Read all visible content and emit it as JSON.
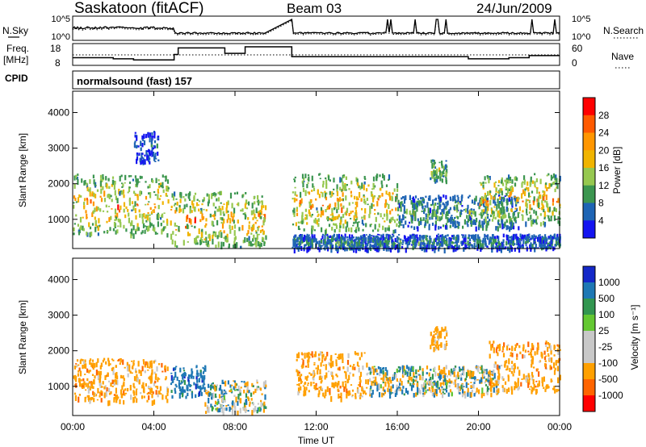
{
  "header": {
    "station": "Saskatoon (fitACF)",
    "beam": "Beam 03",
    "date": "24/Jun/2009"
  },
  "panels": {
    "nsky_label": "N.Sky",
    "nsearch_label": "N.Search",
    "freq_label_1": "Freq.",
    "freq_label_2": "[MHz]",
    "nave_label": "Nave",
    "cpid_label": "CPID",
    "cpid_value": "normalsound (fast) 157"
  },
  "axes": {
    "xlabel": "Time UT",
    "ylabel": "Slant Range [km]",
    "xticks": [
      "00:00",
      "04:00",
      "08:00",
      "12:00",
      "16:00",
      "20:00",
      "00:00"
    ],
    "yticks": [
      "1000",
      "2000",
      "3000",
      "4000"
    ],
    "noise_left_ticks": [
      "10^5",
      "10^0"
    ],
    "noise_right_ticks": [
      "10^5",
      "10^0"
    ],
    "freq_left_ticks": [
      "18",
      "8"
    ],
    "freq_right_ticks": [
      "60",
      "0"
    ]
  },
  "colorbars": {
    "power": {
      "label": "Power [dB]",
      "ticks": [
        "28",
        "24",
        "20",
        "16",
        "12",
        "8",
        "4"
      ],
      "colors": [
        "#ff0000",
        "#ff5a00",
        "#ff9600",
        "#f0b400",
        "#96c850",
        "#3c9650",
        "#1e64b4",
        "#1414f0"
      ]
    },
    "velocity": {
      "label": "Velocity [m s⁻¹]",
      "ticks": [
        "1000",
        "500",
        "100",
        "25",
        "-25",
        "-100",
        "-500",
        "-1000"
      ],
      "colors": [
        "#1428c8",
        "#1e78b4",
        "#329650",
        "#64c832",
        "#c8c8c8",
        "#c8c8c8",
        "#ffa000",
        "#ff6400",
        "#ff0000"
      ]
    }
  },
  "chart_data": [
    {
      "type": "heatmap",
      "title": "Saskatoon (fitACF) Beam 03 24/Jun/2009",
      "xlabel": "Time UT",
      "ylabel": "Slant Range [km]",
      "quantity": "Power [dB]",
      "xlim": [
        "00:00",
        "24:00"
      ],
      "ylim": [
        180,
        4600
      ],
      "clim": [
        0,
        32
      ],
      "data_gap_hours": [
        9.5,
        10.8
      ],
      "echo_regions": [
        {
          "t_start": 0.0,
          "t_end": 4.7,
          "range_km": [
            600,
            2300
          ],
          "peak_power_db": 28
        },
        {
          "t_start": 3.0,
          "t_end": 4.2,
          "range_km": [
            2600,
            3500
          ],
          "peak_power_db": 8
        },
        {
          "t_start": 4.8,
          "t_end": 9.5,
          "range_km": [
            250,
            1800
          ],
          "peak_power_db": 28
        },
        {
          "t_start": 10.8,
          "t_end": 24.0,
          "range_km": [
            200,
            600
          ],
          "peak_power_db": 12
        },
        {
          "t_start": 10.8,
          "t_end": 16.0,
          "range_km": [
            700,
            2300
          ],
          "peak_power_db": 28
        },
        {
          "t_start": 16.0,
          "t_end": 22.0,
          "range_km": [
            800,
            1700
          ],
          "peak_power_db": 16
        },
        {
          "t_start": 17.6,
          "t_end": 18.4,
          "range_km": [
            2100,
            2700
          ],
          "peak_power_db": 20
        },
        {
          "t_start": 20.0,
          "t_end": 24.0,
          "range_km": [
            900,
            2300
          ],
          "peak_power_db": 28
        }
      ]
    },
    {
      "type": "heatmap",
      "title": "",
      "xlabel": "Time UT",
      "ylabel": "Slant Range [km]",
      "quantity": "Velocity [m s⁻¹]",
      "xlim": [
        "00:00",
        "24:00"
      ],
      "ylim": [
        180,
        4600
      ],
      "data_gap_hours": [
        9.5,
        10.8
      ],
      "echo_regions": [
        {
          "t_start": 0.0,
          "t_end": 4.7,
          "range_km": [
            600,
            1800
          ],
          "velocity_ms": -300
        },
        {
          "t_start": 4.8,
          "t_end": 6.5,
          "range_km": [
            700,
            1600
          ],
          "velocity_ms": 300
        },
        {
          "t_start": 6.5,
          "t_end": 9.5,
          "range_km": [
            300,
            1200
          ],
          "velocity_ms": 0
        },
        {
          "t_start": 11.0,
          "t_end": 14.5,
          "range_km": [
            700,
            2000
          ],
          "velocity_ms": -300
        },
        {
          "t_start": 14.5,
          "t_end": 21.0,
          "range_km": [
            800,
            1600
          ],
          "velocity_ms": 0
        },
        {
          "t_start": 17.6,
          "t_end": 18.4,
          "range_km": [
            2100,
            2700
          ],
          "velocity_ms": -300
        },
        {
          "t_start": 20.5,
          "t_end": 24.0,
          "range_km": [
            900,
            2300
          ],
          "velocity_ms": -300
        }
      ]
    },
    {
      "type": "line",
      "title": "",
      "ylabel": "Freq. [MHz]",
      "ylim": [
        8,
        18
      ],
      "series": [
        {
          "x": [
            0,
            2,
            3,
            5,
            5.2,
            7.5,
            8.5,
            9.5,
            10.8,
            18.5,
            19.5,
            21.5,
            22.5,
            24
          ],
          "values": [
            11.5,
            11,
            10.5,
            13,
            16,
            13.5,
            16.5,
            16.5,
            12,
            12,
            11,
            11.5,
            12.5,
            12.5
          ]
        }
      ]
    }
  ]
}
